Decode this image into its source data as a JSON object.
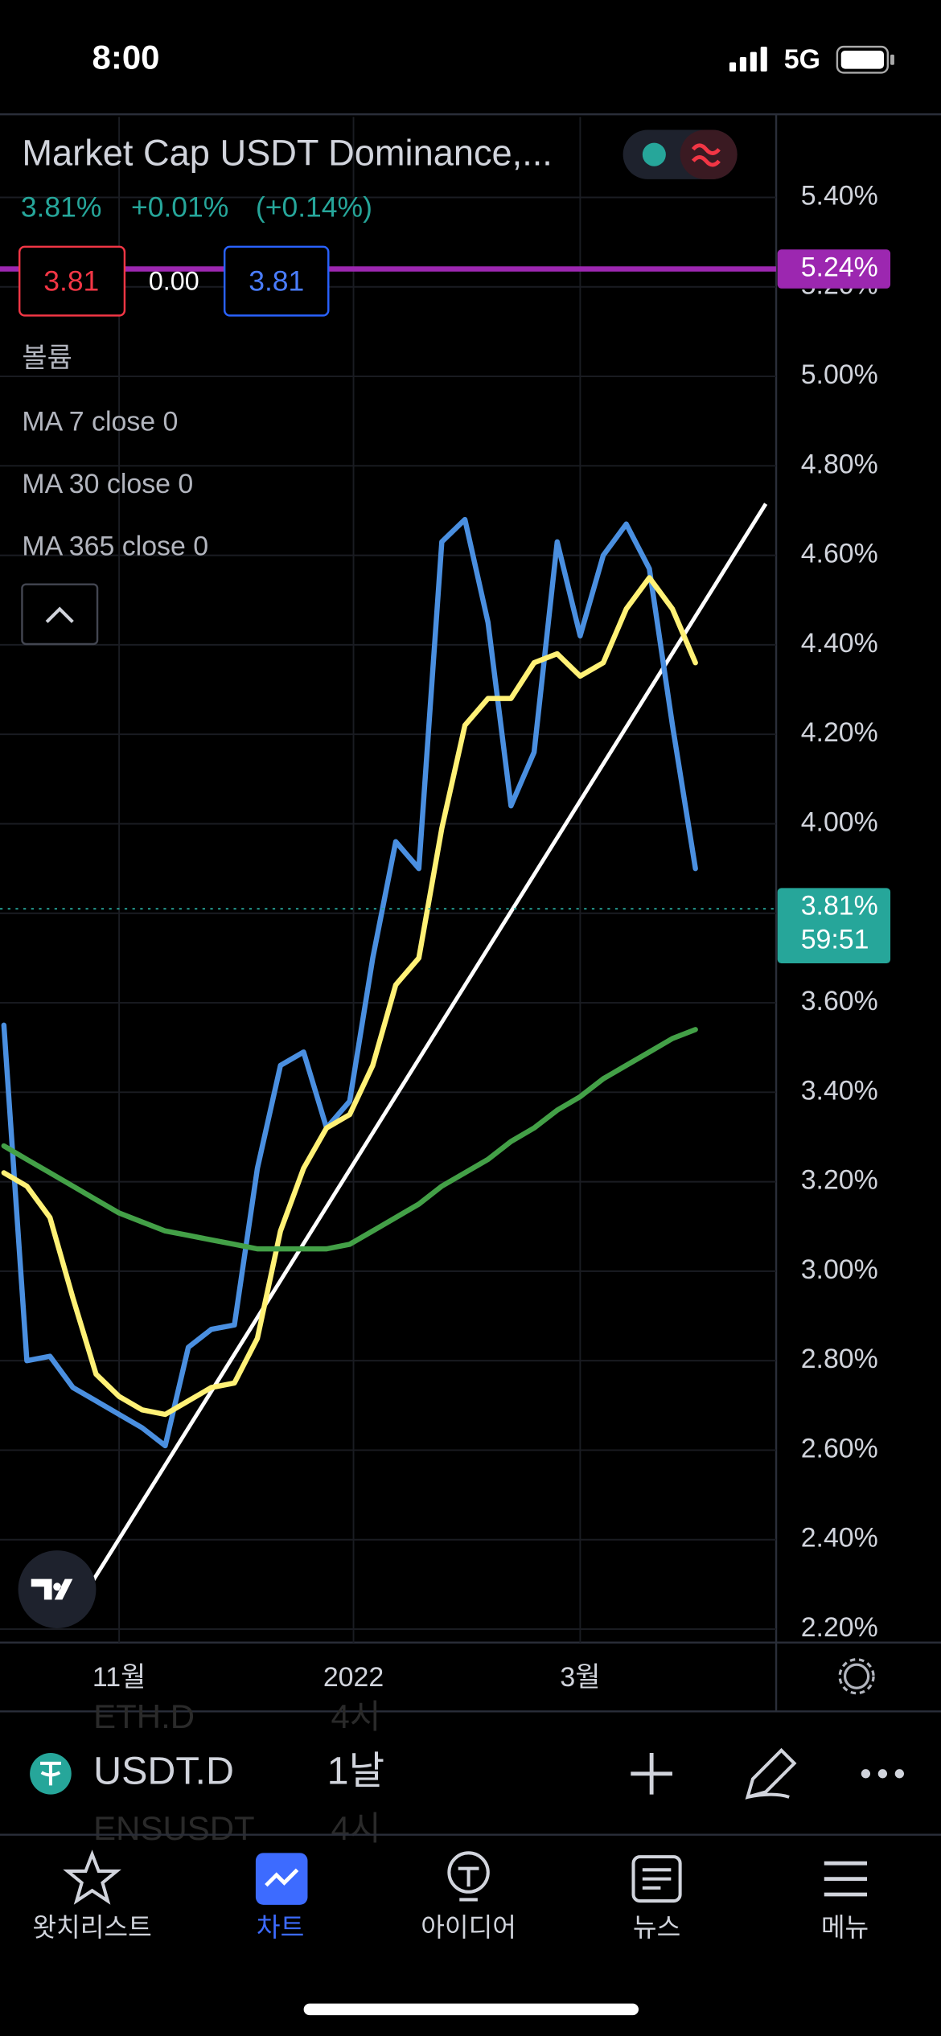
{
  "status_bar": {
    "time": "8:00",
    "network": "5G"
  },
  "header": {
    "title": "Market Cap USDT Dominance,...",
    "last": "3.81%",
    "change": "+0.01%",
    "change_pct": "(+0.14%)"
  },
  "quote_boxes": {
    "bid": "3.81",
    "spread": "0.00",
    "ask": "3.81"
  },
  "indicators": {
    "volume": "볼륨"
  },
  "chart_data": {
    "type": "line",
    "x": [
      -30,
      -24,
      -18,
      -12,
      -6,
      0,
      6,
      12,
      18,
      24,
      30,
      36,
      42,
      48,
      54,
      60,
      66,
      72,
      78,
      84,
      90,
      96,
      102,
      108,
      114,
      120,
      126,
      132,
      138,
      144,
      150
    ],
    "xlim": [
      -31,
      171
    ],
    "xticks": [
      {
        "value": 0,
        "label": "11월"
      },
      {
        "value": 61,
        "label": "2022"
      },
      {
        "value": 120,
        "label": "3월"
      }
    ],
    "ylim": [
      2.17,
      5.58
    ],
    "yticks": [
      {
        "value": 2.2,
        "label": "2.20%"
      },
      {
        "value": 2.4,
        "label": "2.40%"
      },
      {
        "value": 2.6,
        "label": "2.60%"
      },
      {
        "value": 2.8,
        "label": "2.80%"
      },
      {
        "value": 3.0,
        "label": "3.00%"
      },
      {
        "value": 3.2,
        "label": "3.20%"
      },
      {
        "value": 3.4,
        "label": "3.40%"
      },
      {
        "value": 3.6,
        "label": "3.60%"
      },
      {
        "value": 3.8,
        "label": "3.80%"
      },
      {
        "value": 4.0,
        "label": "4.00%"
      },
      {
        "value": 4.2,
        "label": "4.20%"
      },
      {
        "value": 4.4,
        "label": "4.40%"
      },
      {
        "value": 4.6,
        "label": "4.60%"
      },
      {
        "value": 4.8,
        "label": "4.80%"
      },
      {
        "value": 5.0,
        "label": "5.00%"
      },
      {
        "value": 5.2,
        "label": "5.20%"
      },
      {
        "value": 5.4,
        "label": "5.40%"
      }
    ],
    "grid": true,
    "series": [
      {
        "name": "MA 7 close 0",
        "color": "#4a8fe0",
        "values": [
          3.55,
          2.8,
          2.81,
          2.74,
          2.71,
          2.68,
          2.65,
          2.61,
          2.83,
          2.87,
          2.88,
          3.23,
          3.46,
          3.49,
          3.32,
          3.38,
          3.7,
          3.96,
          3.9,
          4.63,
          4.68,
          4.45,
          4.04,
          4.16,
          4.63,
          4.42,
          4.6,
          4.67,
          4.57,
          4.22,
          3.9
        ]
      },
      {
        "name": "MA 30 close 0",
        "color": "#fff176",
        "values": [
          3.22,
          3.19,
          3.12,
          2.94,
          2.77,
          2.72,
          2.69,
          2.68,
          2.71,
          2.74,
          2.75,
          2.85,
          3.09,
          3.23,
          3.32,
          3.35,
          3.46,
          3.64,
          3.7,
          3.99,
          4.22,
          4.28,
          4.28,
          4.36,
          4.38,
          4.33,
          4.36,
          4.48,
          4.55,
          4.48,
          4.36
        ]
      },
      {
        "name": "MA 365 close 0",
        "color": "#43a047",
        "values": [
          3.28,
          3.25,
          3.22,
          3.19,
          3.16,
          3.13,
          3.11,
          3.09,
          3.08,
          3.07,
          3.06,
          3.05,
          3.05,
          3.05,
          3.05,
          3.06,
          3.09,
          3.12,
          3.15,
          3.19,
          3.22,
          3.25,
          3.29,
          3.32,
          3.36,
          3.39,
          3.43,
          3.46,
          3.49,
          3.52,
          3.54
        ]
      }
    ],
    "price_lines": [
      {
        "value": 5.24,
        "label": "5.24%",
        "color": "#9c27b0"
      },
      {
        "value": 3.81,
        "label": "3.81%",
        "countdown": "59:51",
        "color": "#26a69a"
      }
    ]
  },
  "symbol_bar": {
    "symbol": "USDT.D",
    "interval": "1날",
    "list": [
      {
        "symbol": "ETH.D",
        "interval": "4시"
      },
      {
        "symbol": "ENSUSDT",
        "interval": "4시"
      }
    ]
  },
  "tabs": [
    {
      "label": "왓치리스트"
    },
    {
      "label": "차트",
      "active": true
    },
    {
      "label": "아이디어"
    },
    {
      "label": "뉴스"
    },
    {
      "label": "메뉴"
    }
  ]
}
